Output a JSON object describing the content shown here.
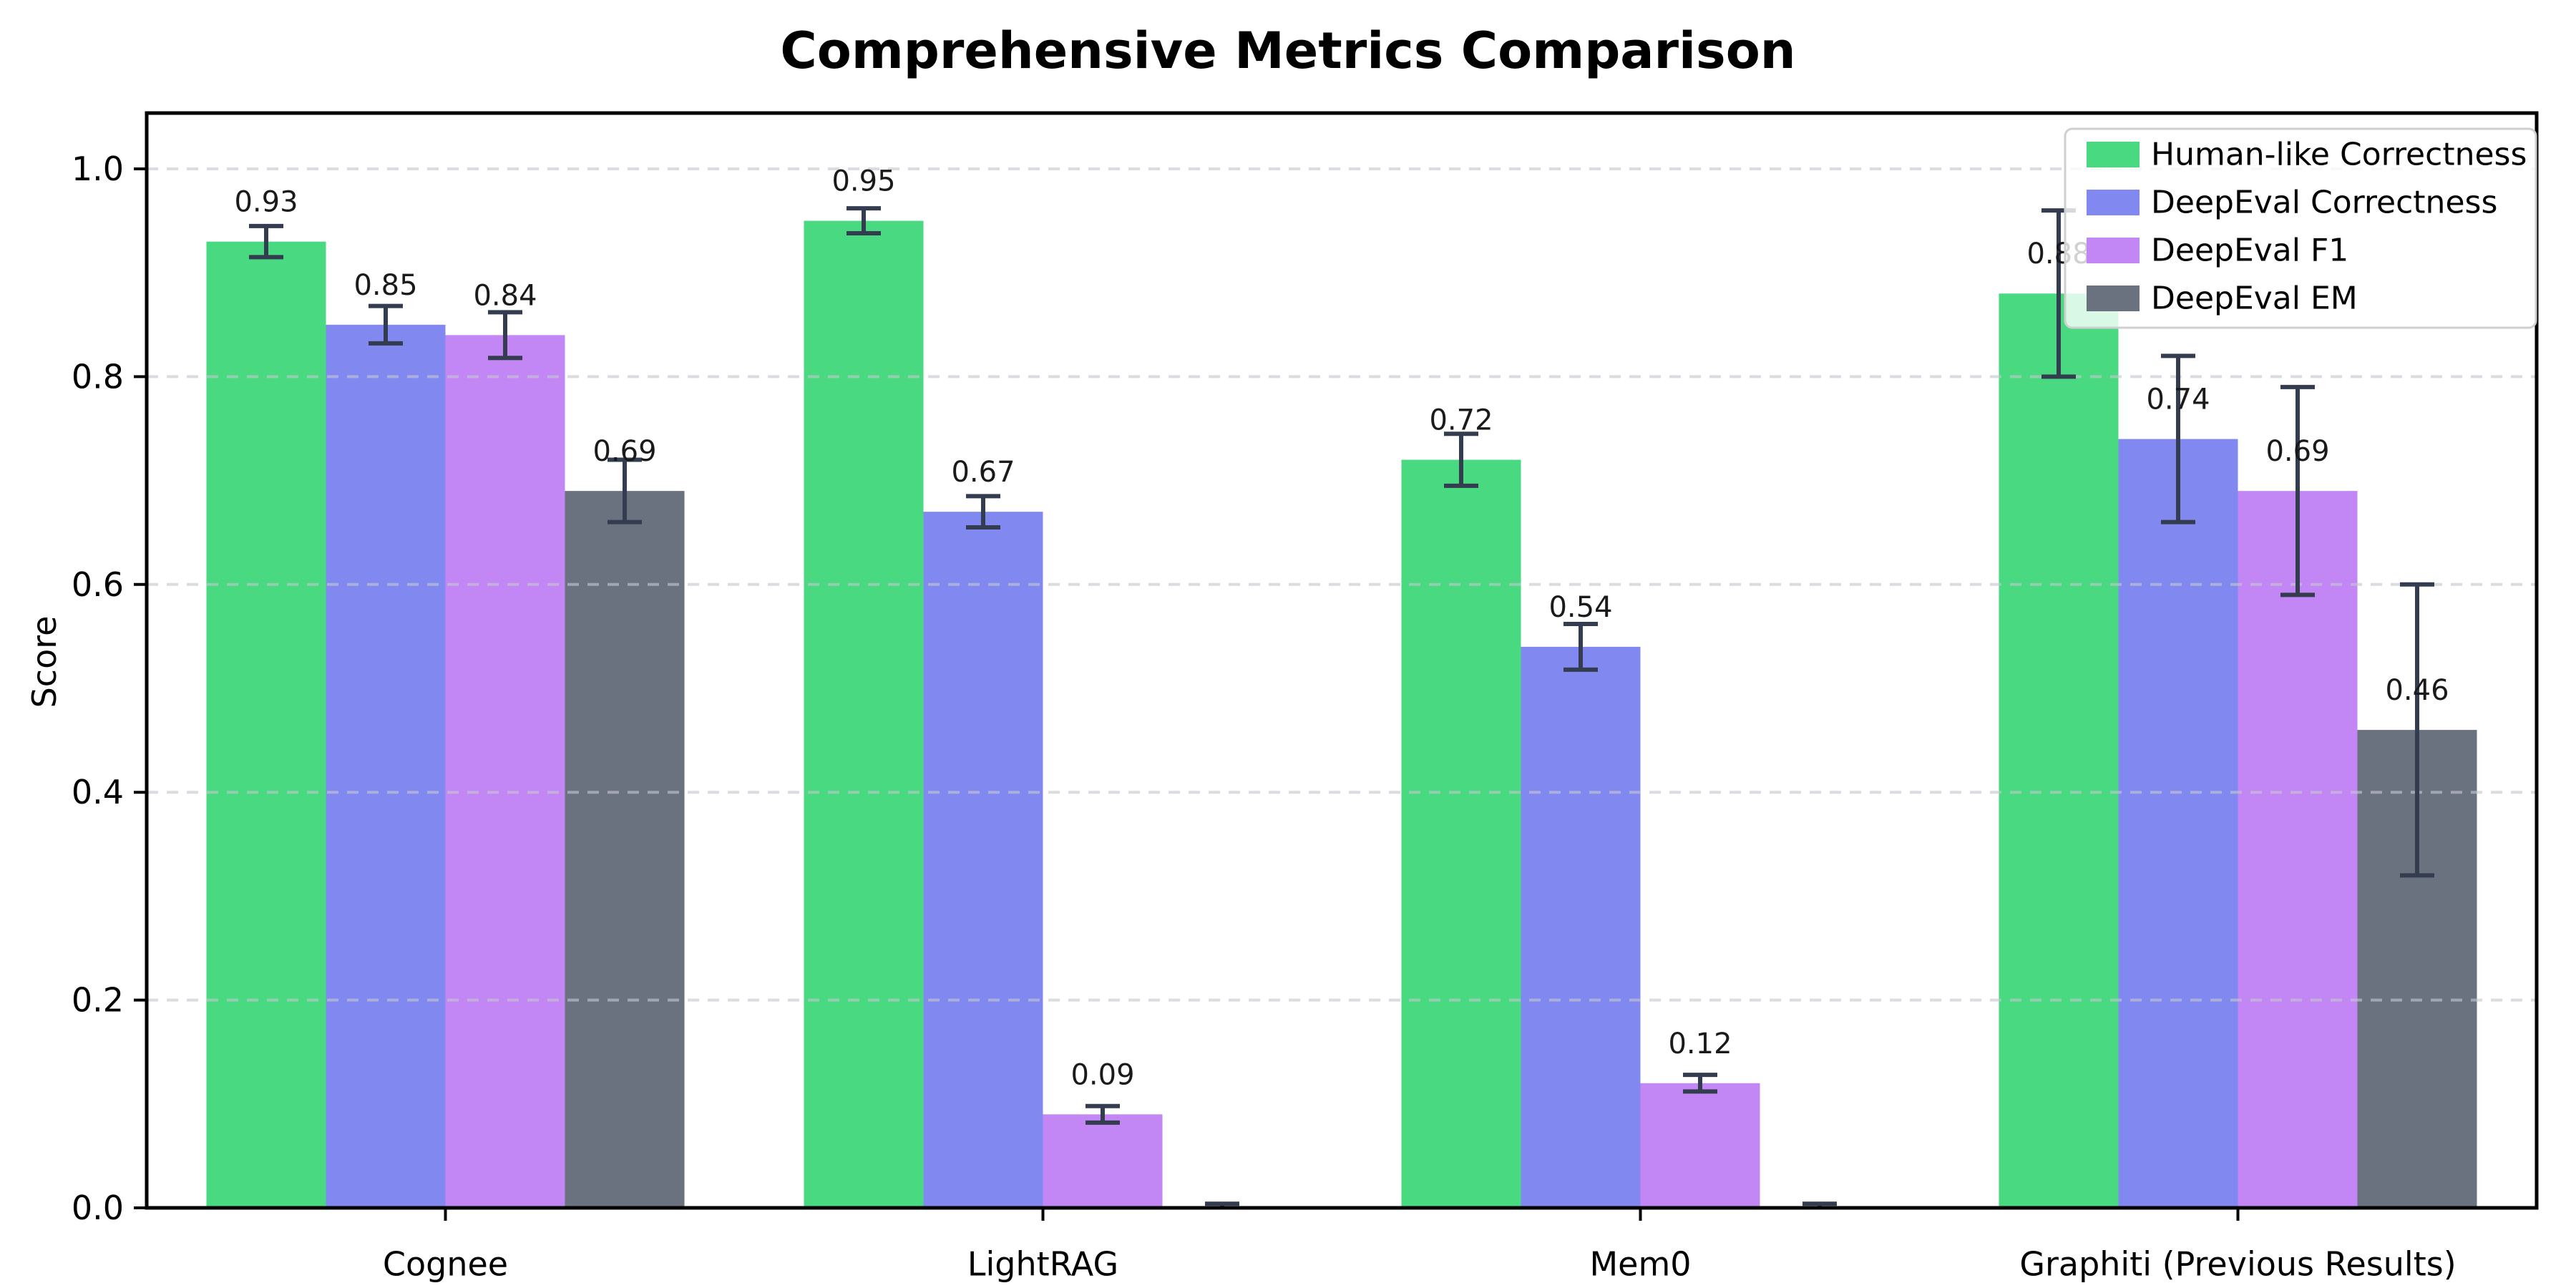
{
  "title": "Comprehensive Metrics Comparison",
  "chart_data": {
    "type": "bar",
    "title": "Comprehensive Metrics Comparison",
    "xlabel": "",
    "ylabel": "Score",
    "ylim": [
      0.0,
      1.05
    ],
    "ytick_labels": [
      "0.0",
      "0.2",
      "0.4",
      "0.6",
      "0.8",
      "1.0"
    ],
    "grid": "horizontal dashed, drawn above bars",
    "legend_position": "upper right",
    "categories": [
      "Cognee",
      "LightRAG",
      "Mem0",
      "Graphiti (Previous Results)"
    ],
    "series": [
      {
        "name": "Human-like Correctness",
        "color": "#49da81",
        "values": [
          0.93,
          0.95,
          0.72,
          0.88
        ],
        "errors": [
          0.015,
          0.012,
          0.025,
          0.08
        ],
        "labels": [
          "0.93",
          "0.95",
          "0.72",
          "0.88"
        ]
      },
      {
        "name": "DeepEval Correctness",
        "color": "#8189f0",
        "values": [
          0.85,
          0.67,
          0.54,
          0.74
        ],
        "errors": [
          0.018,
          0.015,
          0.022,
          0.08
        ],
        "labels": [
          "0.85",
          "0.67",
          "0.54",
          "0.74"
        ]
      },
      {
        "name": "DeepEval F1",
        "color": "#c287f4",
        "values": [
          0.84,
          0.09,
          0.12,
          0.69
        ],
        "errors": [
          0.022,
          0.008,
          0.008,
          0.1
        ],
        "labels": [
          "0.84",
          "0.09",
          "0.12",
          "0.69"
        ]
      },
      {
        "name": "DeepEval EM",
        "color": "#6a7280",
        "values": [
          0.69,
          0.0,
          0.0,
          0.46
        ],
        "errors": [
          0.03,
          0.004,
          0.004,
          0.14
        ],
        "labels": [
          "0.69",
          "",
          "",
          "0.46"
        ]
      }
    ]
  },
  "colors": {
    "errorbar": "#333d4f",
    "grid": "#c4c7ce",
    "axis": "#000000",
    "value_label": "#1a1a1a",
    "legend_border": "#cfcfcf",
    "background": "#ffffff"
  }
}
